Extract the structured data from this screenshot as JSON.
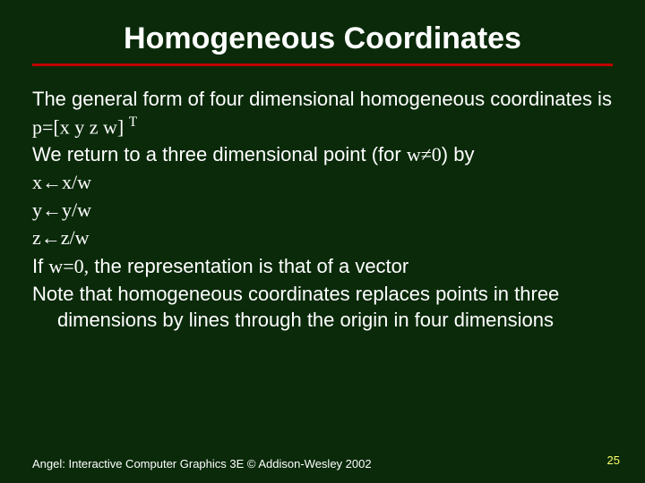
{
  "slide": {
    "title": "Homogeneous Coordinates",
    "title_color": "#ffffff",
    "title_fontsize": 34,
    "rule_color": "#c00000",
    "background_color": "#0a2a0a",
    "body_fontsize": 22,
    "body_color": "#ffffff",
    "lines": {
      "l1a": "The general form of four dimensional homogeneous",
      "l1b": "coordinates is",
      "l2_pre": "p=[x y z w] ",
      "l2_sup": "T",
      "l3_pre": "We return to a three dimensional point (for ",
      "l3_math": "w≠0",
      "l3_post": ") by",
      "l4": "x←x/w",
      "l5": "y←y/w",
      "l6": "z←z/w",
      "l7_pre": "If ",
      "l7_math": "w=0,",
      "l7_post": " the representation is that of a vector",
      "l8a": "Note that homogeneous coordinates replaces points in",
      "l8b": "three dimensions by lines through the origin in four",
      "l8c": "dimensions"
    },
    "footer": "Angel: Interactive Computer Graphics 3E © Addison-Wesley 2002",
    "footer_fontsize": 13,
    "page_number": "25",
    "page_number_color": "#ffff66"
  }
}
